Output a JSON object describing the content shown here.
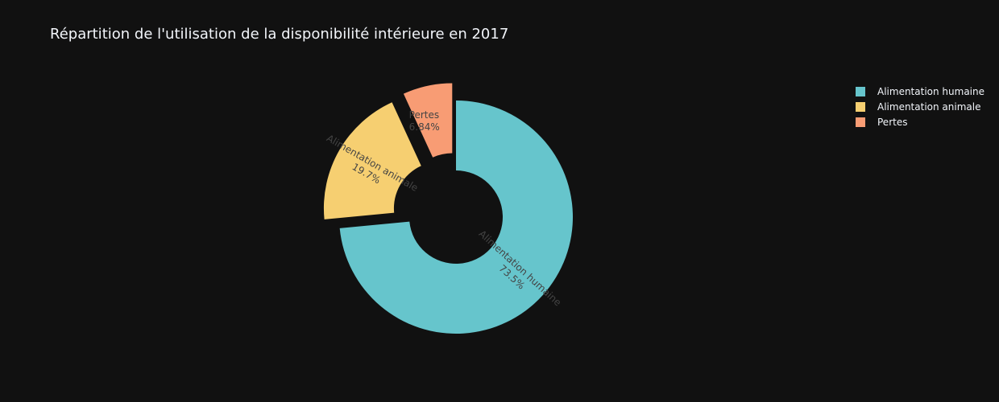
{
  "chart_data": {
    "type": "pie",
    "title": "Répartition de l'utilisation de la disponibilité intérieure en 2017",
    "hole": true,
    "legend_position": "top-right",
    "slices": [
      {
        "label": "Alimentation humaine",
        "percent_text": "73.5%",
        "value": 73.5,
        "color": "#66c5cc",
        "pulled": false
      },
      {
        "label": "Alimentation animale",
        "percent_text": "19.7%",
        "value": 19.7,
        "color": "#f6cf71",
        "pulled": true
      },
      {
        "label": "Pertes",
        "percent_text": "6.84%",
        "value": 6.84,
        "color": "#f89c74",
        "pulled": true
      }
    ]
  }
}
